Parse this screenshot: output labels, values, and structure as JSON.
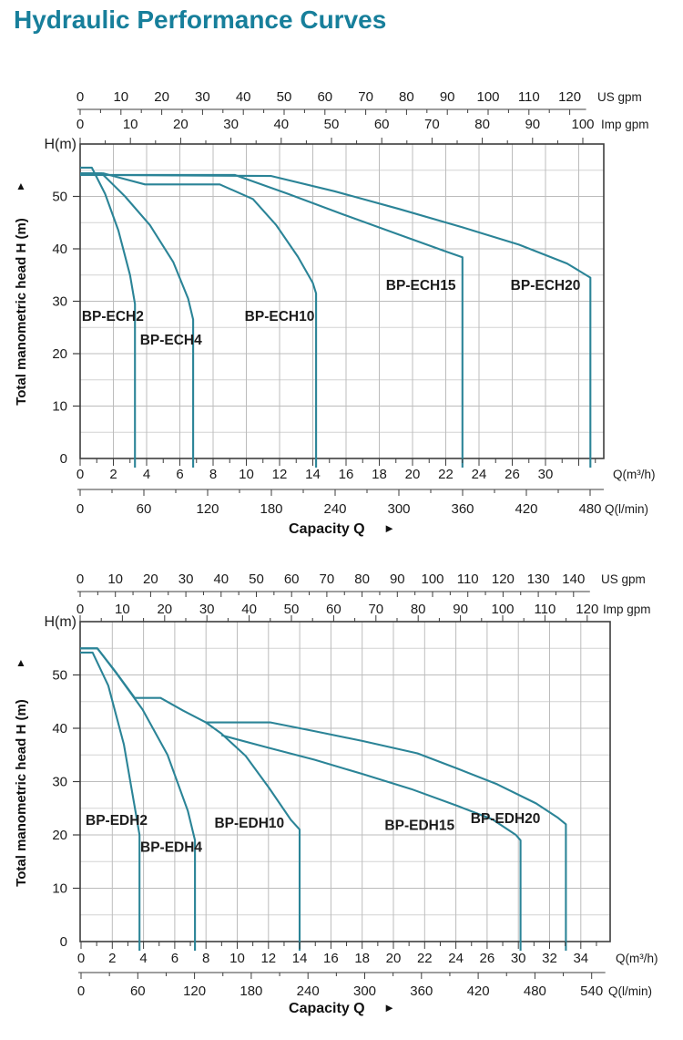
{
  "title": "Hydraulic Performance Curves",
  "colors": {
    "title": "#177f9b",
    "curve": "#2b8497",
    "grid_minor": "#d4d4d4",
    "grid_major": "#bcbcbc",
    "frame": "#3d3d3d",
    "text": "#1c1c1c"
  },
  "chart_data": [
    {
      "type": "line",
      "name": "BP-ECH series",
      "head_label": "H(m)",
      "y_axis_title": "Total manometric head H (m)",
      "up_arrow": "▲",
      "x_caption": "Capacity Q",
      "caption_arrow": "►",
      "ylim": [
        0,
        60
      ],
      "y_tick_labels": [
        "50",
        "40",
        "30",
        "20",
        "10",
        "0"
      ],
      "y_tick_values": [
        50,
        40,
        30,
        20,
        10,
        0
      ],
      "axes": {
        "us_gpm": {
          "unit": "US gpm",
          "labels": [
            "0",
            "10",
            "20",
            "30",
            "40",
            "50",
            "60",
            "70",
            "80",
            "90",
            "100",
            "110",
            "120"
          ]
        },
        "imp_gpm": {
          "unit": "Imp gpm",
          "labels": [
            "0",
            "10",
            "20",
            "30",
            "40",
            "50",
            "60",
            "70",
            "80",
            "90",
            "100"
          ]
        },
        "m3h": {
          "unit": "Q(m³/h)",
          "labels": [
            "0",
            "2",
            "4",
            "6",
            "8",
            "10",
            "12",
            "14",
            "16",
            "18",
            "20",
            "22",
            "24",
            "26",
            "30"
          ]
        },
        "lmin": {
          "unit": "Q(l/min)",
          "labels": [
            "0",
            "60",
            "120",
            "180",
            "240",
            "300",
            "360",
            "420",
            "480"
          ]
        }
      },
      "series": [
        {
          "name": "BP-ECH2",
          "points": [
            [
              0,
              55.5
            ],
            [
              0.7,
              55.5
            ],
            [
              1.5,
              50.5
            ],
            [
              2.3,
              43.5
            ],
            [
              3.0,
              35
            ],
            [
              3.3,
              29.5
            ],
            [
              3.3,
              0
            ]
          ],
          "label_at": [
            0.1,
            26.3
          ]
        },
        {
          "name": "BP-ECH4",
          "points": [
            [
              0,
              54.4
            ],
            [
              1.3,
              54.4
            ],
            [
              2.7,
              50
            ],
            [
              4.2,
              44.5
            ],
            [
              5.6,
              37.5
            ],
            [
              6.5,
              30.5
            ],
            [
              6.8,
              26.5
            ],
            [
              6.8,
              0
            ]
          ],
          "label_at": [
            3.6,
            21.7
          ]
        },
        {
          "name": "BP-ECH10",
          "points": [
            [
              0,
              54.4
            ],
            [
              1.4,
              54.4
            ],
            [
              3.9,
              52.3
            ],
            [
              8.4,
              52.3
            ],
            [
              10.4,
              49.5
            ],
            [
              11.8,
              44.5
            ],
            [
              13.1,
              38.5
            ],
            [
              14.0,
              33.5
            ],
            [
              14.2,
              31.5
            ],
            [
              14.2,
              0
            ]
          ],
          "label_at": [
            9.9,
            26.3
          ]
        },
        {
          "name": "BP-ECH15",
          "points": [
            [
              0,
              54.1
            ],
            [
              9.3,
              54.1
            ],
            [
              12.5,
              50.5
            ],
            [
              15.8,
              46.6
            ],
            [
              19.2,
              42.7
            ],
            [
              22.1,
              39.4
            ],
            [
              23.0,
              38.4
            ],
            [
              23.0,
              0
            ]
          ],
          "label_at": [
            18.4,
            32.2
          ]
        },
        {
          "name": "BP-ECH20",
          "points": [
            [
              0,
              54.1
            ],
            [
              11.5,
              53.9
            ],
            [
              15.3,
              51
            ],
            [
              19.2,
              47.6
            ],
            [
              23.0,
              44.1
            ],
            [
              26.4,
              40.8
            ],
            [
              29.3,
              37.2
            ],
            [
              30.7,
              34.5
            ],
            [
              30.7,
              0
            ]
          ],
          "label_at": [
            25.9,
            32.2
          ]
        }
      ]
    },
    {
      "type": "line",
      "name": "BP-EDH series",
      "head_label": "H(m)",
      "y_axis_title": "Total manometric head H (m)",
      "up_arrow": "▲",
      "x_caption": "Capacity Q",
      "caption_arrow": "►",
      "ylim": [
        0,
        60
      ],
      "y_tick_labels": [
        "50",
        "40",
        "30",
        "20",
        "10",
        "0"
      ],
      "y_tick_values": [
        50,
        40,
        30,
        20,
        10,
        0
      ],
      "axes": {
        "us_gpm": {
          "unit": "US gpm",
          "labels": [
            "0",
            "10",
            "20",
            "30",
            "40",
            "50",
            "60",
            "70",
            "80",
            "90",
            "100",
            "110",
            "120",
            "130",
            "140"
          ]
        },
        "imp_gpm": {
          "unit": "Imp gpm",
          "labels": [
            "0",
            "10",
            "20",
            "30",
            "40",
            "50",
            "60",
            "70",
            "80",
            "90",
            "100",
            "110",
            "120"
          ]
        },
        "m3h": {
          "unit": "Q(m³/h)",
          "labels": [
            "0",
            "2",
            "4",
            "6",
            "8",
            "10",
            "12",
            "14",
            "16",
            "18",
            "20",
            "22",
            "24",
            "26",
            "30",
            "32",
            "34"
          ]
        },
        "lmin": {
          "unit": "Q(l/min)",
          "labels": [
            "0",
            "60",
            "120",
            "180",
            "240",
            "300",
            "360",
            "420",
            "480",
            "540"
          ]
        }
      },
      "series": [
        {
          "name": "BP-EDH2",
          "points": [
            [
              0,
              54.2
            ],
            [
              0.8,
              54.2
            ],
            [
              1.8,
              48
            ],
            [
              2.8,
              37
            ],
            [
              3.6,
              23.5
            ],
            [
              3.8,
              20
            ],
            [
              3.8,
              0
            ]
          ],
          "label_at": [
            0.35,
            21.9
          ]
        },
        {
          "name": "BP-EDH4",
          "points": [
            [
              0,
              55
            ],
            [
              1.1,
              55
            ],
            [
              2.4,
              50
            ],
            [
              4.0,
              43.5
            ],
            [
              5.6,
              35
            ],
            [
              6.9,
              24.5
            ],
            [
              7.35,
              19
            ],
            [
              7.35,
              0
            ]
          ],
          "label_at": [
            3.85,
            16.8
          ]
        },
        {
          "name": "BP-EDH10",
          "points": [
            [
              0,
              55
            ],
            [
              1.1,
              55
            ],
            [
              2.3,
              50.5
            ],
            [
              3.5,
              45.7
            ],
            [
              5.15,
              45.7
            ],
            [
              6.6,
              43.3
            ],
            [
              8.05,
              41.1
            ],
            [
              9.05,
              39
            ],
            [
              10.6,
              34.8
            ],
            [
              12.1,
              28.8
            ],
            [
              13.5,
              22.8
            ],
            [
              14.05,
              21
            ],
            [
              14.05,
              0
            ]
          ],
          "label_at": [
            8.6,
            21.4
          ]
        },
        {
          "name": "BP-EDH15",
          "points": [
            [
              9.05,
              38.7
            ],
            [
              12,
              36.4
            ],
            [
              15,
              34.1
            ],
            [
              18.1,
              31.4
            ],
            [
              21.2,
              28.6
            ],
            [
              24.2,
              25.4
            ],
            [
              26.4,
              22.9
            ],
            [
              27.9,
              20
            ],
            [
              28.2,
              19
            ],
            [
              28.2,
              0
            ]
          ],
          "label_at": [
            19.5,
            20.9
          ]
        },
        {
          "name": "BP-EDH20",
          "points": [
            [
              8.05,
              41.1
            ],
            [
              12.2,
              41.1
            ],
            [
              15.1,
              39.4
            ],
            [
              18.1,
              37.6
            ],
            [
              21.6,
              35.3
            ],
            [
              24.2,
              32.4
            ],
            [
              26.7,
              29.5
            ],
            [
              29.2,
              25.9
            ],
            [
              30.6,
              23.2
            ],
            [
              31.1,
              22
            ],
            [
              31.1,
              0
            ]
          ],
          "label_at": [
            25.0,
            22.2
          ]
        }
      ]
    }
  ]
}
